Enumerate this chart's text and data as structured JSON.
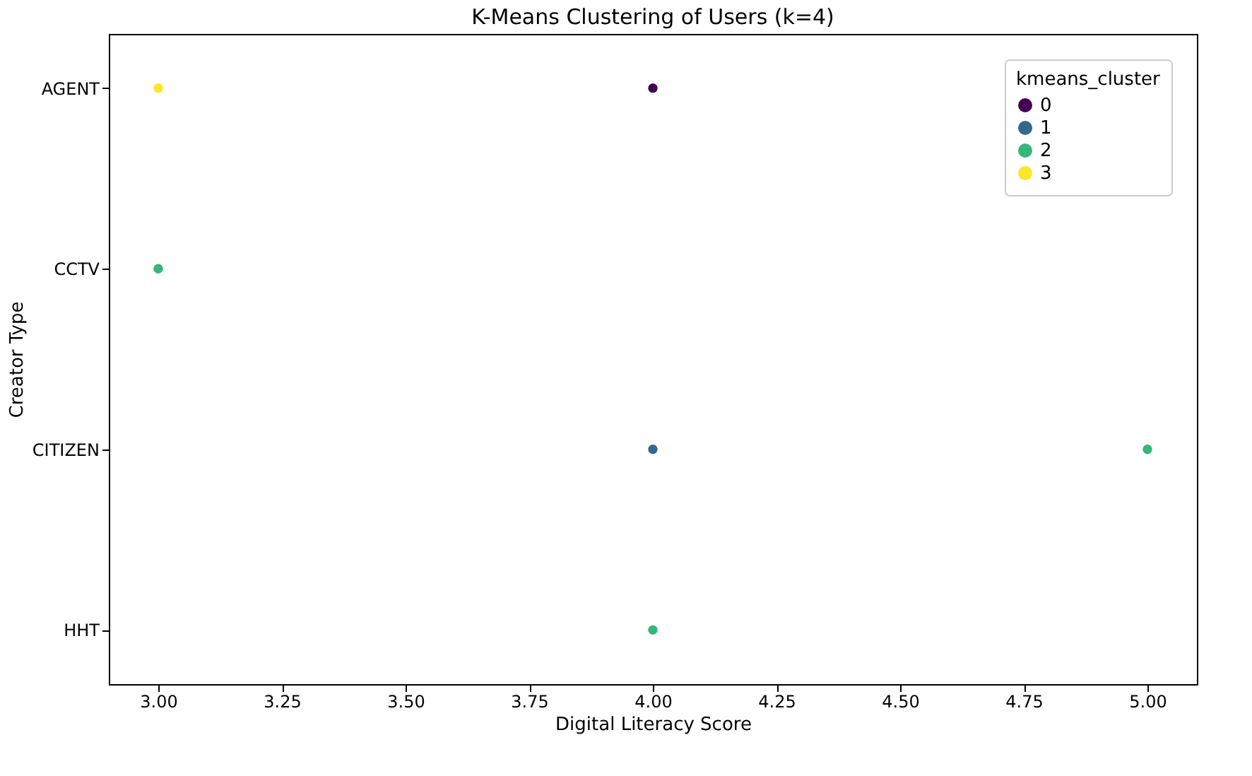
{
  "chart_data": {
    "type": "scatter",
    "orientation": "horizontal",
    "title": "K-Means Clustering of Users (k=4)",
    "xlabel": "Digital Literacy Score",
    "ylabel": "Creator Type",
    "legend_title": "kmeans_cluster",
    "legend": "top right",
    "grid": false,
    "marker": "circle",
    "categories": [
      "AGENT",
      "CCTV",
      "CITIZEN",
      "HHT"
    ],
    "xlim": [
      2.9,
      5.1
    ],
    "xticks": [
      {
        "value": 3,
        "label": "3.00"
      },
      {
        "value": 3.25,
        "label": "3.25"
      },
      {
        "value": 3.5,
        "label": "3.50"
      },
      {
        "value": 3.75,
        "label": "3.75"
      },
      {
        "value": 4,
        "label": "4.00"
      },
      {
        "value": 4.25,
        "label": "4.25"
      },
      {
        "value": 4.5,
        "label": "4.50"
      },
      {
        "value": 4.75,
        "label": "4.75"
      },
      {
        "value": 5,
        "label": "5.00"
      }
    ],
    "series": [
      {
        "name": "0",
        "color": "#440154",
        "values": [
          4,
          null,
          null,
          null
        ]
      },
      {
        "name": "1",
        "color": "#31688e",
        "values": [
          null,
          null,
          4,
          null
        ]
      },
      {
        "name": "2",
        "color": "#35b779",
        "values": [
          null,
          3,
          5,
          4
        ]
      },
      {
        "name": "3",
        "color": "#fde725",
        "values": [
          3,
          null,
          null,
          null
        ]
      }
    ]
  }
}
